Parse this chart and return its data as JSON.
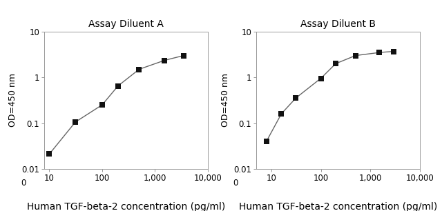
{
  "chart_A": {
    "title": "Assay Diluent A",
    "x": [
      10,
      31,
      100,
      200,
      500,
      1500,
      3500
    ],
    "y": [
      0.021,
      0.105,
      0.25,
      0.65,
      1.5,
      2.35,
      3.0
    ],
    "xlim": [
      8,
      10000
    ],
    "ylim": [
      0.01,
      10
    ],
    "xticks": [
      10,
      100,
      1000,
      10000
    ],
    "xtick_labels": [
      "10",
      "100",
      "1,000",
      "10,000"
    ],
    "yticks": [
      0.01,
      0.1,
      1,
      10
    ],
    "ytick_labels": [
      "0.01",
      "0.1",
      "1",
      "10"
    ],
    "ylabel": "OD=450 nm",
    "xlabel": "Human TGF-beta-2 concentration (pg/ml)"
  },
  "chart_B": {
    "title": "Assay Diluent B",
    "x": [
      8,
      16,
      31,
      100,
      200,
      500,
      1500,
      3000
    ],
    "y": [
      0.04,
      0.16,
      0.35,
      0.95,
      2.0,
      3.0,
      3.5,
      3.7
    ],
    "xlim": [
      5,
      10000
    ],
    "ylim": [
      0.01,
      10
    ],
    "xticks": [
      10,
      100,
      1000,
      10000
    ],
    "xtick_labels": [
      "10",
      "100",
      "1,000",
      "10,000"
    ],
    "yticks": [
      0.01,
      0.1,
      1,
      10
    ],
    "ytick_labels": [
      "0.01",
      "0.1",
      "1",
      "10"
    ],
    "ylabel": "OD=450 nm",
    "xlabel": "Human TGF-beta-2 concentration (pg/ml)"
  },
  "line_color": "#666666",
  "marker_color": "#111111",
  "marker_size": 4,
  "bg_color": "#ffffff",
  "title_fontsize": 10,
  "label_fontsize": 9,
  "tick_fontsize": 8.5,
  "xlabel_fontsize": 10
}
